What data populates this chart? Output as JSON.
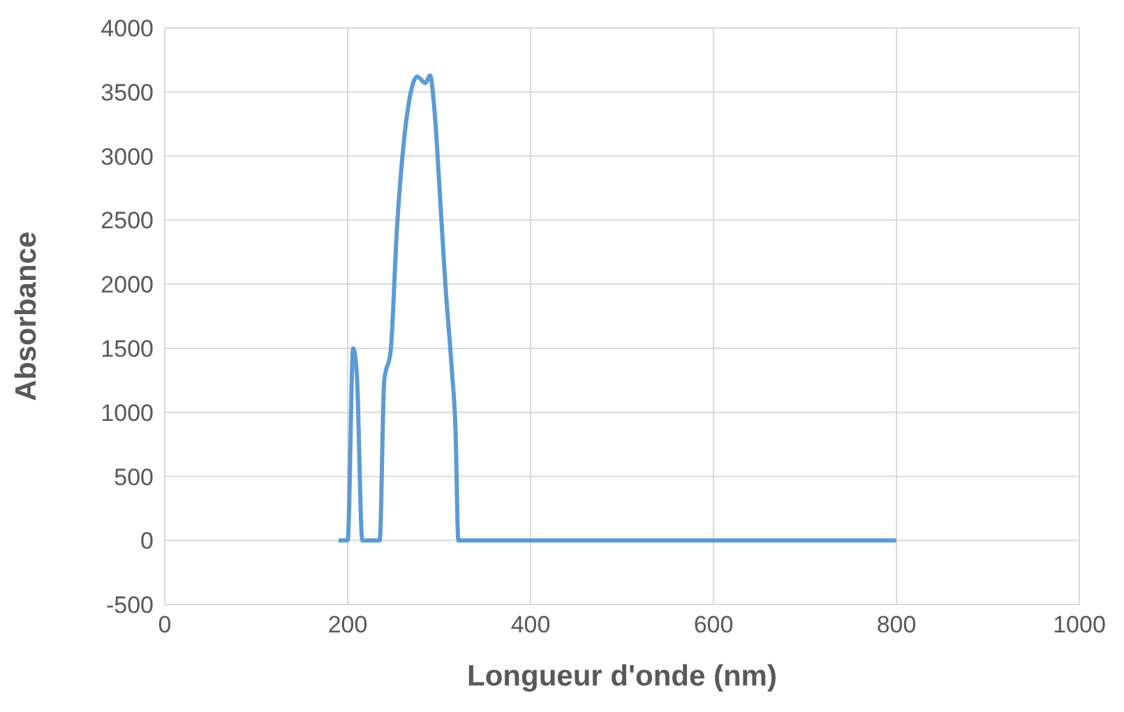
{
  "chart_data": {
    "type": "line",
    "xlabel": "Longueur d'onde (nm)",
    "ylabel": "Absorbance",
    "xlim": [
      0,
      1000
    ],
    "xticks": [
      0,
      200,
      400,
      600,
      800,
      1000
    ],
    "ylim": [
      -500,
      4000
    ],
    "yticks": [
      -500,
      0,
      500,
      1000,
      1500,
      2000,
      2500,
      3000,
      3500,
      4000
    ],
    "grid": true,
    "marker": "none",
    "line_style": "solid",
    "series": [
      {
        "color": "#5b9bd5",
        "x": [
          190,
          200,
          206,
          210,
          216,
          235,
          240,
          247,
          254,
          261,
          267,
          276,
          285,
          290,
          295,
          301,
          307,
          314,
          318,
          321,
          400,
          500,
          600,
          700,
          800
        ],
        "values": [
          0,
          0,
          1500,
          1300,
          0,
          0,
          1250,
          1480,
          2450,
          3080,
          3420,
          3620,
          3570,
          3630,
          3350,
          2680,
          1980,
          1320,
          850,
          0,
          0,
          0,
          0,
          0,
          0
        ]
      }
    ]
  }
}
